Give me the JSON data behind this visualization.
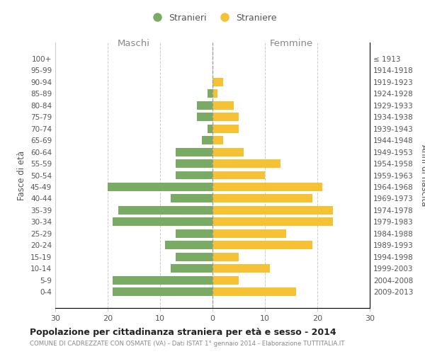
{
  "age_groups": [
    "100+",
    "95-99",
    "90-94",
    "85-89",
    "80-84",
    "75-79",
    "70-74",
    "65-69",
    "60-64",
    "55-59",
    "50-54",
    "45-49",
    "40-44",
    "35-39",
    "30-34",
    "25-29",
    "20-24",
    "15-19",
    "10-14",
    "5-9",
    "0-4"
  ],
  "birth_years": [
    "≤ 1913",
    "1914-1918",
    "1919-1923",
    "1924-1928",
    "1929-1933",
    "1934-1938",
    "1939-1943",
    "1944-1948",
    "1949-1953",
    "1954-1958",
    "1959-1963",
    "1964-1968",
    "1969-1973",
    "1974-1978",
    "1979-1983",
    "1984-1988",
    "1989-1993",
    "1994-1998",
    "1999-2003",
    "2004-2008",
    "2009-2013"
  ],
  "males": [
    0,
    0,
    0,
    1,
    3,
    3,
    1,
    2,
    7,
    7,
    7,
    20,
    8,
    18,
    19,
    7,
    9,
    7,
    8,
    19,
    19
  ],
  "females": [
    0,
    0,
    2,
    1,
    4,
    5,
    5,
    2,
    6,
    13,
    10,
    21,
    19,
    23,
    23,
    14,
    19,
    5,
    11,
    5,
    16
  ],
  "male_color": "#7aab64",
  "female_color": "#f5c135",
  "title": "Popolazione per cittadinanza straniera per età e sesso - 2014",
  "subtitle": "COMUNE DI CADREZZATE CON OSMATE (VA) - Dati ISTAT 1° gennaio 2014 - Elaborazione TUTTITALIA.IT",
  "xlabel_left": "Maschi",
  "xlabel_right": "Femmine",
  "ylabel_left": "Fasce di età",
  "ylabel_right": "Anni di nascita",
  "xlim": 30,
  "legend_stranieri": "Stranieri",
  "legend_straniere": "Straniere",
  "background_color": "#ffffff",
  "grid_color": "#cccccc"
}
